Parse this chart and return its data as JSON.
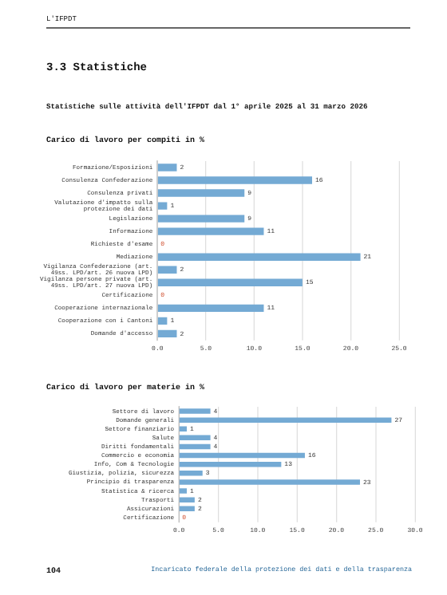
{
  "chart_data": [
    {
      "type": "bar",
      "orientation": "horizontal",
      "title": "Carico di lavoro per compiti in %",
      "annotations": [
        "L'IFPDT",
        "3.3 Statistiche",
        "Statistiche sulle attività dell'IFPDT dal 1° aprile 2025 al 31 marzo 2026"
      ],
      "categories": [
        "Formazione/Esposizioni",
        "Consulenza Confederazione",
        "Consulenza privati",
        "Valutazione d'impatto sulla protezione dei dati",
        "Legislazione",
        "Informazione",
        "Richieste d'esame",
        "Mediazione",
        "Vigilanza Confederazione (art. 49ss. LPD/art. 26 nuova LPD)",
        "Vigilanza persone private (art. 49ss. LPD/art. 27 nuova LPD)",
        "Certificazione",
        "Cooperazione internazionale",
        "Cooperazione con i Cantoni",
        "Domande d'accesso"
      ],
      "values": [
        2,
        16,
        9,
        1,
        9,
        11,
        0,
        21,
        2,
        15,
        0,
        11,
        1,
        2
      ],
      "color": "#74aad4",
      "xlim": [
        0,
        25
      ],
      "xticks": [
        {
          "value": 0,
          "label": "0.0"
        },
        {
          "value": 5,
          "label": "5.0"
        },
        {
          "value": 10,
          "label": "10.0"
        },
        {
          "value": 15,
          "label": "15.0"
        },
        {
          "value": 20,
          "label": "20.0"
        },
        {
          "value": 25,
          "label": "25.0"
        }
      ],
      "grid": "x",
      "data_labels": true
    },
    {
      "type": "bar",
      "orientation": "horizontal",
      "title": "Carico di lavoro per materie in %",
      "annotations": [
        "104",
        "Incaricato federale della protezione dei dati e della trasparenza"
      ],
      "categories": [
        "Settore di lavoro",
        "Domande generali",
        "Settore finanziario",
        "Salute",
        "Diritti fondamentali",
        "Commercio e economia",
        "Info, Com & Tecnologie",
        "Giustizia, polizia, sicurezza",
        "Principio di trasparenza",
        "Statistica & ricerca",
        "Trasporti",
        "Assicurazioni",
        "Certificazione"
      ],
      "values": [
        4,
        27,
        1,
        4,
        4,
        16,
        13,
        3,
        23,
        1,
        2,
        2,
        0
      ],
      "color": "#74aad4",
      "xlim": [
        0,
        30
      ],
      "xticks": [
        {
          "value": 0,
          "label": "0.0"
        },
        {
          "value": 5,
          "label": "5.0"
        },
        {
          "value": 10,
          "label": "10.0"
        },
        {
          "value": 15,
          "label": "15.0"
        },
        {
          "value": 20,
          "label": "20.0"
        },
        {
          "value": 25,
          "label": "25.0"
        },
        {
          "value": 30,
          "label": "30.0"
        }
      ],
      "grid": "x",
      "data_labels": true
    }
  ]
}
